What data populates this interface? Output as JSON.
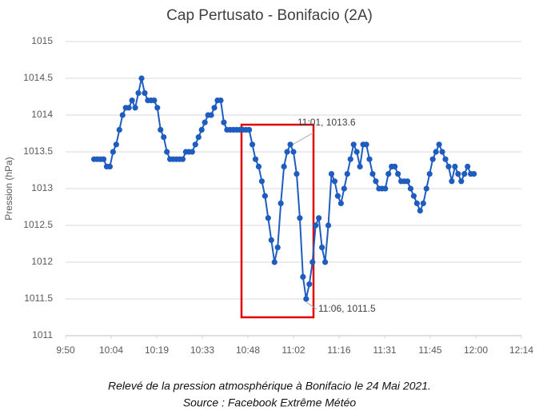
{
  "chart_data": {
    "type": "line",
    "title": "Cap Pertusato - Bonifacio (2A)",
    "y_label": "Pression (hPa)",
    "caption": [
      "Relevé de la pression atmosphérique à Bonifacio le 24 Mai 2021.",
      "Source : Facebook Extrême Météo"
    ],
    "annotations": [
      "11:01, 1013.6",
      "11:06, 1011.5"
    ],
    "color": "#1f5cbf",
    "grid": true,
    "xlim": [
      590,
      734
    ],
    "xticks": [
      {
        "value": 590,
        "label": "9:50"
      },
      {
        "value": 604.4,
        "label": "10:04"
      },
      {
        "value": 618.8,
        "label": "10:19"
      },
      {
        "value": 633.2,
        "label": "10:33"
      },
      {
        "value": 647.6,
        "label": "10:48"
      },
      {
        "value": 662,
        "label": "11:02"
      },
      {
        "value": 676.4,
        "label": "11:16"
      },
      {
        "value": 690.8,
        "label": "11:31"
      },
      {
        "value": 705.2,
        "label": "11:45"
      },
      {
        "value": 719.6,
        "label": "12:00"
      },
      {
        "value": 734,
        "label": "12:14"
      }
    ],
    "ylim": [
      1011,
      1015
    ],
    "yticks": [
      1011,
      1011.5,
      1012,
      1012.5,
      1013,
      1013.5,
      1014,
      1014.5,
      1015
    ],
    "x": [
      599,
      600,
      601,
      602,
      603,
      604,
      605,
      606,
      607,
      608,
      609,
      610,
      611,
      612,
      613,
      614,
      615,
      616,
      617,
      618,
      619,
      620,
      621,
      622,
      623,
      624,
      625,
      626,
      627,
      628,
      629,
      630,
      631,
      632,
      633,
      634,
      635,
      636,
      637,
      638,
      639,
      640,
      641,
      642,
      643,
      644,
      645,
      646,
      647,
      648,
      649,
      650,
      651,
      652,
      653,
      654,
      655,
      656,
      657,
      658,
      659,
      660,
      661,
      662,
      663,
      664,
      665,
      666,
      667,
      668,
      669,
      670,
      671,
      672,
      673,
      674,
      675,
      676,
      677,
      678,
      679,
      680,
      681,
      682,
      683,
      684,
      685,
      686,
      687,
      688,
      689,
      690,
      691,
      692,
      693,
      694,
      695,
      696,
      697,
      698,
      699,
      700,
      701,
      702,
      703,
      704,
      705,
      706,
      707,
      708,
      709,
      710,
      711,
      712,
      713,
      714,
      715,
      716,
      717,
      718,
      719
    ],
    "values": [
      1013.4,
      1013.4,
      1013.4,
      1013.4,
      1013.3,
      1013.3,
      1013.5,
      1013.6,
      1013.8,
      1014.0,
      1014.1,
      1014.1,
      1014.2,
      1014.1,
      1014.3,
      1014.5,
      1014.3,
      1014.2,
      1014.2,
      1014.2,
      1014.1,
      1013.8,
      1013.7,
      1013.5,
      1013.4,
      1013.4,
      1013.4,
      1013.4,
      1013.4,
      1013.5,
      1013.5,
      1013.5,
      1013.6,
      1013.7,
      1013.8,
      1013.9,
      1014.0,
      1014.0,
      1014.1,
      1014.2,
      1014.2,
      1013.9,
      1013.8,
      1013.8,
      1013.8,
      1013.8,
      1013.8,
      1013.8,
      1013.8,
      1013.8,
      1013.6,
      1013.4,
      1013.3,
      1013.1,
      1012.9,
      1012.6,
      1012.3,
      1012.0,
      1012.2,
      1012.8,
      1013.3,
      1013.5,
      1013.6,
      1013.5,
      1013.2,
      1012.6,
      1011.8,
      1011.5,
      1011.7,
      1012.0,
      1012.5,
      1012.6,
      1012.2,
      1012.0,
      1012.5,
      1013.2,
      1013.1,
      1012.9,
      1012.8,
      1013.0,
      1013.2,
      1013.4,
      1013.6,
      1013.5,
      1013.3,
      1013.6,
      1013.6,
      1013.4,
      1013.2,
      1013.1,
      1013.0,
      1013.0,
      1013.0,
      1013.2,
      1013.3,
      1013.3,
      1013.2,
      1013.1,
      1013.1,
      1013.1,
      1013.0,
      1012.9,
      1012.8,
      1012.7,
      1012.8,
      1013.0,
      1013.2,
      1013.4,
      1013.5,
      1013.6,
      1013.5,
      1013.4,
      1013.3,
      1013.1,
      1013.3,
      1013.2,
      1013.1,
      1013.2,
      1013.3,
      1013.2,
      1013.2
    ]
  }
}
